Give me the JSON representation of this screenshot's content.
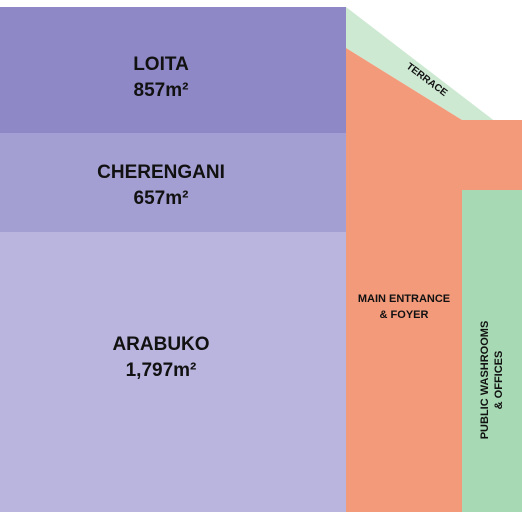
{
  "rooms": {
    "loita": {
      "name": "LOITA",
      "area": "857m²",
      "color": "#8e88c6"
    },
    "cherengani": {
      "name": "CHERENGANI",
      "area": "657m²",
      "color": "#a49fd2"
    },
    "arabuko": {
      "name": "ARABUKO",
      "area": "1,797m²",
      "color": "#bab5de"
    },
    "terrace": {
      "name": "TERRACE",
      "color": "#cde9d2"
    },
    "main_entrance": {
      "line1": "MAIN ENTRANCE",
      "line2": "& FOYER",
      "color": "#f39a7b"
    },
    "washrooms": {
      "line1": "PUBLIC WASHROOMS",
      "line2": "& OFFICES",
      "color": "#a7d9b4"
    }
  }
}
